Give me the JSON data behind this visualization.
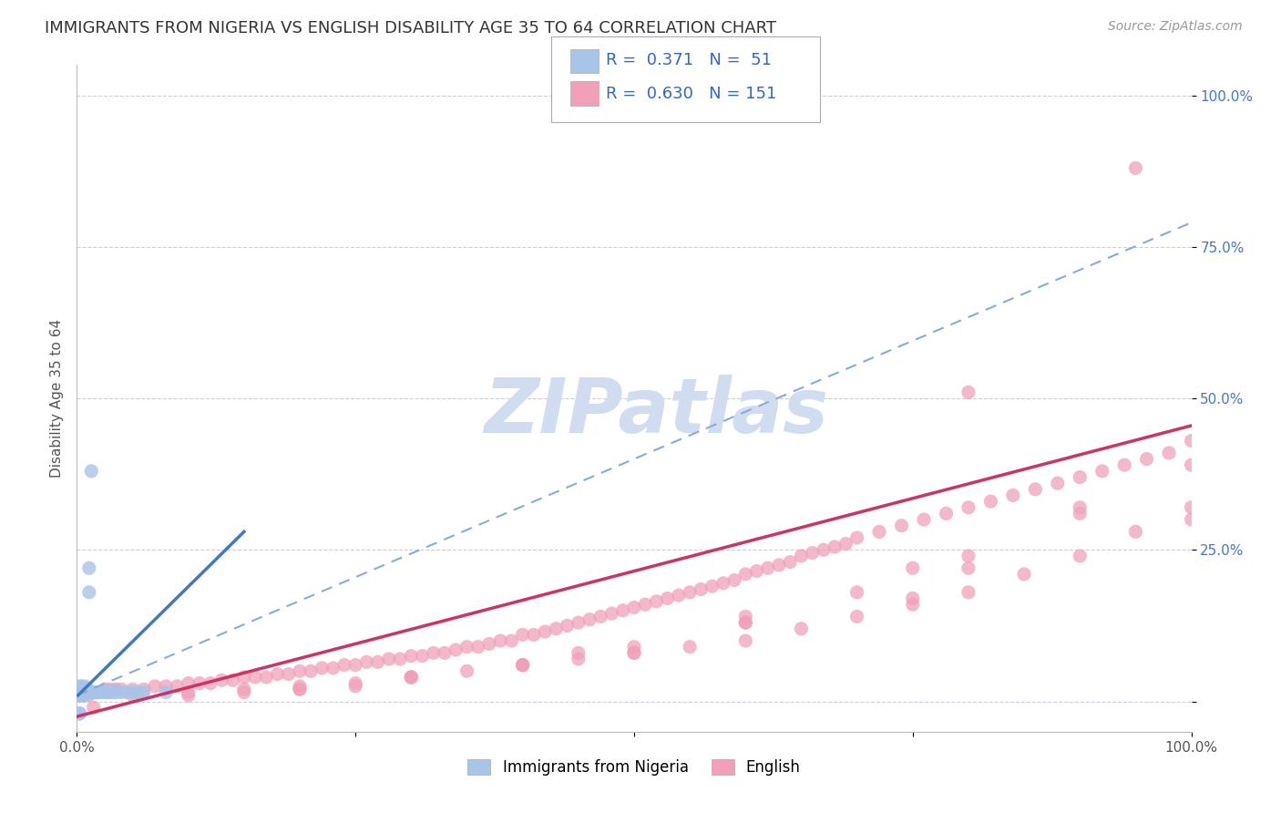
{
  "title": "IMMIGRANTS FROM NIGERIA VS ENGLISH DISABILITY AGE 35 TO 64 CORRELATION CHART",
  "source": "Source: ZipAtlas.com",
  "ylabel": "Disability Age 35 to 64",
  "r1": "0.371",
  "n1": "51",
  "r2": "0.630",
  "n2": "151",
  "color_nigeria": "#a8c4e8",
  "color_nigeria_fill": "#b8d0f0",
  "color_nigeria_line": "#4477bb",
  "color_english": "#f0a0b8",
  "color_english_fill": "#f8b8cc",
  "color_english_line": "#cc3366",
  "color_dashed": "#88aadd",
  "watermark_color": "#d0ddf0",
  "background_color": "#ffffff",
  "grid_color": "#ccccdd",
  "legend_label1": "Immigrants from Nigeria",
  "legend_label2": "English",
  "xlim": [
    0.0,
    1.0
  ],
  "ylim": [
    -0.05,
    1.05
  ],
  "ytick_positions": [
    0.0,
    0.25,
    0.5,
    0.75,
    1.0
  ],
  "ytick_labels": [
    "",
    "25.0%",
    "50.0%",
    "75.0%",
    "100.0%"
  ],
  "xtick_positions": [
    0.0,
    0.25,
    0.5,
    0.75,
    1.0
  ],
  "xtick_labels": [
    "0.0%",
    "",
    "",
    "",
    "100.0%"
  ],
  "title_fontsize": 13,
  "axis_label_fontsize": 11,
  "tick_fontsize": 11,
  "source_fontsize": 10,
  "nigeria_x": [
    0.001,
    0.001,
    0.002,
    0.002,
    0.002,
    0.003,
    0.003,
    0.003,
    0.004,
    0.004,
    0.004,
    0.005,
    0.005,
    0.005,
    0.006,
    0.006,
    0.007,
    0.007,
    0.007,
    0.008,
    0.008,
    0.009,
    0.009,
    0.01,
    0.01,
    0.011,
    0.011,
    0.012,
    0.013,
    0.014,
    0.015,
    0.016,
    0.018,
    0.02,
    0.022,
    0.024,
    0.026,
    0.028,
    0.03,
    0.032,
    0.035,
    0.04,
    0.045,
    0.05,
    0.055,
    0.06,
    0.001,
    0.002,
    0.003,
    0.013,
    0.08
  ],
  "nigeria_y": [
    0.015,
    0.02,
    0.01,
    0.02,
    0.025,
    0.01,
    0.015,
    0.02,
    0.015,
    0.02,
    0.025,
    0.01,
    0.018,
    0.02,
    0.015,
    0.02,
    0.01,
    0.018,
    0.025,
    0.015,
    0.02,
    0.015,
    0.022,
    0.015,
    0.02,
    0.18,
    0.22,
    0.015,
    0.015,
    0.015,
    0.015,
    0.015,
    0.015,
    0.015,
    0.015,
    0.015,
    0.015,
    0.015,
    0.015,
    0.015,
    0.015,
    0.015,
    0.015,
    0.015,
    0.015,
    0.015,
    -0.02,
    -0.02,
    -0.02,
    0.38,
    0.015
  ],
  "english_x": [
    0.001,
    0.002,
    0.003,
    0.004,
    0.005,
    0.006,
    0.007,
    0.008,
    0.009,
    0.01,
    0.012,
    0.014,
    0.016,
    0.018,
    0.02,
    0.025,
    0.03,
    0.035,
    0.04,
    0.05,
    0.06,
    0.07,
    0.08,
    0.09,
    0.1,
    0.11,
    0.12,
    0.13,
    0.14,
    0.15,
    0.16,
    0.17,
    0.18,
    0.19,
    0.2,
    0.21,
    0.22,
    0.23,
    0.24,
    0.25,
    0.26,
    0.27,
    0.28,
    0.29,
    0.3,
    0.31,
    0.32,
    0.33,
    0.34,
    0.35,
    0.36,
    0.37,
    0.38,
    0.39,
    0.4,
    0.41,
    0.42,
    0.43,
    0.44,
    0.45,
    0.46,
    0.47,
    0.48,
    0.49,
    0.5,
    0.51,
    0.52,
    0.53,
    0.54,
    0.55,
    0.56,
    0.57,
    0.58,
    0.59,
    0.6,
    0.61,
    0.62,
    0.63,
    0.64,
    0.65,
    0.66,
    0.67,
    0.68,
    0.69,
    0.7,
    0.72,
    0.74,
    0.76,
    0.78,
    0.8,
    0.82,
    0.84,
    0.86,
    0.88,
    0.9,
    0.92,
    0.94,
    0.96,
    0.98,
    1.0,
    0.05,
    0.1,
    0.15,
    0.2,
    0.25,
    0.3,
    0.35,
    0.4,
    0.45,
    0.5,
    0.55,
    0.6,
    0.65,
    0.7,
    0.75,
    0.8,
    0.85,
    0.9,
    0.95,
    1.0,
    0.1,
    0.2,
    0.3,
    0.4,
    0.5,
    0.6,
    0.7,
    0.8,
    0.9,
    1.0,
    0.15,
    0.3,
    0.45,
    0.6,
    0.75,
    0.9,
    0.2,
    0.4,
    0.6,
    0.8,
    0.25,
    0.5,
    0.75,
    1.0,
    0.002,
    0.004,
    0.006,
    0.01,
    0.015,
    0.8,
    0.95
  ],
  "english_y": [
    0.01,
    0.015,
    0.01,
    0.015,
    0.01,
    0.015,
    0.015,
    0.015,
    0.02,
    0.015,
    0.015,
    0.015,
    0.015,
    0.015,
    0.015,
    0.02,
    0.02,
    0.02,
    0.02,
    0.02,
    0.02,
    0.025,
    0.025,
    0.025,
    0.03,
    0.03,
    0.03,
    0.035,
    0.035,
    0.04,
    0.04,
    0.04,
    0.045,
    0.045,
    0.05,
    0.05,
    0.055,
    0.055,
    0.06,
    0.06,
    0.065,
    0.065,
    0.07,
    0.07,
    0.075,
    0.075,
    0.08,
    0.08,
    0.085,
    0.09,
    0.09,
    0.095,
    0.1,
    0.1,
    0.11,
    0.11,
    0.115,
    0.12,
    0.125,
    0.13,
    0.135,
    0.14,
    0.145,
    0.15,
    0.155,
    0.16,
    0.165,
    0.17,
    0.175,
    0.18,
    0.185,
    0.19,
    0.195,
    0.2,
    0.21,
    0.215,
    0.22,
    0.225,
    0.23,
    0.24,
    0.245,
    0.25,
    0.255,
    0.26,
    0.27,
    0.28,
    0.29,
    0.3,
    0.31,
    0.32,
    0.33,
    0.34,
    0.35,
    0.36,
    0.37,
    0.38,
    0.39,
    0.4,
    0.41,
    0.43,
    0.01,
    0.015,
    0.02,
    0.025,
    0.03,
    0.04,
    0.05,
    0.06,
    0.07,
    0.08,
    0.09,
    0.1,
    0.12,
    0.14,
    0.16,
    0.18,
    0.21,
    0.24,
    0.28,
    0.32,
    0.01,
    0.02,
    0.04,
    0.06,
    0.09,
    0.13,
    0.18,
    0.24,
    0.31,
    0.39,
    0.015,
    0.04,
    0.08,
    0.14,
    0.22,
    0.32,
    0.02,
    0.06,
    0.13,
    0.22,
    0.025,
    0.08,
    0.17,
    0.3,
    0.01,
    0.01,
    0.01,
    0.01,
    -0.01,
    0.51,
    0.88
  ],
  "eng_line_x0": 0.0,
  "eng_line_y0": -0.025,
  "eng_line_x1": 1.0,
  "eng_line_y1": 0.455,
  "nig_line_x0": 0.001,
  "nig_line_y0": 0.01,
  "nig_line_x1": 0.15,
  "nig_line_y1": 0.28,
  "dash_line_x0": 0.0,
  "dash_line_y0": 0.01,
  "dash_line_x1": 1.0,
  "dash_line_y1": 0.79
}
